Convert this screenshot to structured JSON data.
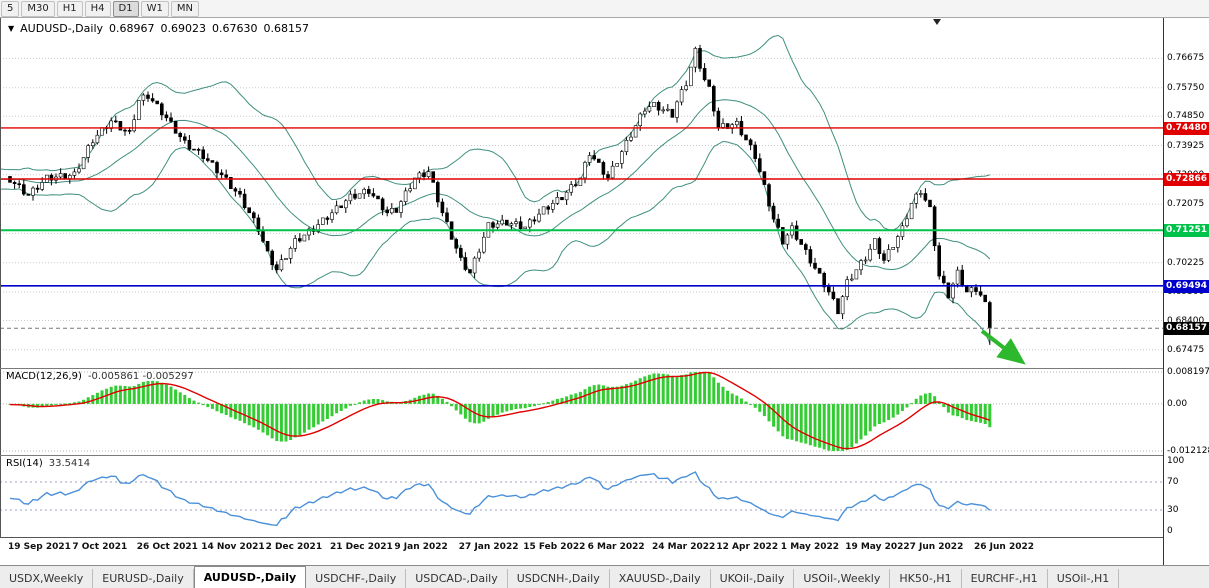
{
  "toolbar": {
    "timeframes": [
      "5",
      "M30",
      "H1",
      "H4",
      "D1",
      "W1",
      "MN"
    ],
    "active": "D1"
  },
  "chart_header": {
    "dropdown_icon": "▼",
    "symbol_label": "AUDUSD-,Daily",
    "open": "0.68967",
    "high": "0.69023",
    "low": "0.67630",
    "close": "0.68157"
  },
  "chart_data": {
    "type": "candlestick",
    "title": "AUDUSD-,Daily",
    "symbol": "AUDUSD",
    "timeframe": "Daily",
    "ylim": [
      0.669,
      0.7795
    ],
    "y_axis_ticks": [
      {
        "v": 0.76675,
        "t": "0.76675"
      },
      {
        "v": 0.7575,
        "t": "0.75750"
      },
      {
        "v": 0.7485,
        "t": "0.74850"
      },
      {
        "v": 0.73925,
        "t": "0.73925"
      },
      {
        "v": 0.73,
        "t": "0.73000"
      },
      {
        "v": 0.72075,
        "t": "0.72075"
      },
      {
        "v": 0.7115,
        "t": "0.71150"
      },
      {
        "v": 0.70225,
        "t": "0.70225"
      },
      {
        "v": 0.693,
        "t": "0.69300"
      },
      {
        "v": 0.684,
        "t": "0.68400"
      },
      {
        "v": 0.67475,
        "t": "0.67475"
      }
    ],
    "x_axis": {
      "candles_per_label": 14,
      "labels": [
        "19 Sep 2021",
        "7 Oct 2021",
        "26 Oct 2021",
        "14 Nov 2021",
        "2 Dec 2021",
        "21 Dec 2021",
        "9 Jan 2022",
        "27 Jan 2022",
        "15 Feb 2022",
        "6 Mar 2022",
        "24 Mar 2022",
        "12 Apr 2022",
        "1 May 2022",
        "19 May 2022",
        "7 Jun 2022",
        "26 Jun 2022"
      ]
    },
    "warmup_closes": [
      0.73,
      0.7285,
      0.727,
      0.729,
      0.731,
      0.7295,
      0.728,
      0.7265,
      0.7285,
      0.7305,
      0.729,
      0.7275,
      0.726,
      0.728,
      0.73,
      0.7315,
      0.7295,
      0.7275,
      0.729,
      0.7305,
      0.7285,
      0.727,
      0.7255,
      0.7275,
      0.7295,
      0.731,
      0.729,
      0.7272,
      0.7288,
      0.7295
    ],
    "closes": [
      0.7285,
      0.7272,
      0.726,
      0.7248,
      0.7235,
      0.7249,
      0.7263,
      0.7276,
      0.729,
      0.7292,
      0.7293,
      0.7295,
      0.7297,
      0.7298,
      0.73,
      0.7328,
      0.7355,
      0.7383,
      0.741,
      0.7425,
      0.744,
      0.7455,
      0.747,
      0.746,
      0.745,
      0.744,
      0.743,
      0.7483,
      0.7535,
      0.7543,
      0.755,
      0.7533,
      0.7515,
      0.7498,
      0.748,
      0.746,
      0.744,
      0.742,
      0.74,
      0.739,
      0.738,
      0.737,
      0.736,
      0.7345,
      0.733,
      0.7315,
      0.73,
      0.7283,
      0.7265,
      0.7248,
      0.723,
      0.7205,
      0.718,
      0.7155,
      0.713,
      0.709,
      0.705,
      0.7025,
      0.7,
      0.7023,
      0.7045,
      0.7068,
      0.709,
      0.71,
      0.711,
      0.712,
      0.713,
      0.7143,
      0.7155,
      0.7168,
      0.718,
      0.7193,
      0.7205,
      0.7218,
      0.723,
      0.7235,
      0.724,
      0.7245,
      0.725,
      0.7233,
      0.7215,
      0.7198,
      0.718,
      0.7185,
      0.719,
      0.7215,
      0.724,
      0.7265,
      0.729,
      0.7297,
      0.7303,
      0.731,
      0.7267,
      0.7223,
      0.718,
      0.7143,
      0.7105,
      0.7068,
      0.703,
      0.701,
      0.699,
      0.7028,
      0.7065,
      0.7103,
      0.714,
      0.7143,
      0.7145,
      0.7148,
      0.715,
      0.7146,
      0.7143,
      0.7139,
      0.7135,
      0.7149,
      0.7163,
      0.7176,
      0.719,
      0.72,
      0.721,
      0.722,
      0.723,
      0.7245,
      0.726,
      0.7275,
      0.729,
      0.733,
      0.737,
      0.735,
      0.733,
      0.731,
      0.729,
      0.7318,
      0.7345,
      0.7373,
      0.74,
      0.7428,
      0.7455,
      0.7483,
      0.751,
      0.7515,
      0.752,
      0.7513,
      0.7505,
      0.7498,
      0.749,
      0.753,
      0.756,
      0.759,
      0.764,
      0.769,
      0.7645,
      0.76,
      0.757,
      0.751,
      0.745,
      0.7453,
      0.7455,
      0.7458,
      0.746,
      0.7435,
      0.741,
      0.7385,
      0.736,
      0.731,
      0.726,
      0.721,
      0.716,
      0.7125,
      0.709,
      0.711,
      0.713,
      0.7105,
      0.708,
      0.7055,
      0.703,
      0.7005,
      0.698,
      0.6955,
      0.693,
      0.69,
      0.687,
      0.6915,
      0.696,
      0.698,
      0.7,
      0.702,
      0.704,
      0.7065,
      0.709,
      0.706,
      0.703,
      0.7055,
      0.708,
      0.7105,
      0.713,
      0.717,
      0.721,
      0.723,
      0.725,
      0.722,
      0.719,
      0.7085,
      0.698,
      0.695,
      0.692,
      0.6955,
      0.699,
      0.696,
      0.693,
      0.6935,
      0.694,
      0.692,
      0.689,
      0.6816
    ],
    "last_candle": {
      "o": 0.68967,
      "h": 0.69023,
      "l": 0.6763,
      "c": 0.68157
    },
    "candle_colors": {
      "up_fill": "#ffffff",
      "down_fill": "#000000",
      "stroke": "#000000"
    },
    "bollinger": {
      "period": 20,
      "deviation": 2,
      "color": "#3f8f7f"
    },
    "hlines": [
      {
        "v": 0.7448,
        "t": "0.74480",
        "c": "#e00000",
        "w": 1.4
      },
      {
        "v": 0.72866,
        "t": "0.72866",
        "c": "#e00000",
        "w": 1.4
      },
      {
        "v": 0.71251,
        "t": "0.71251",
        "c": "#00c24b",
        "w": 2
      },
      {
        "v": 0.69494,
        "t": "0.69494",
        "c": "#0000cc",
        "w": 1.6
      }
    ],
    "current_price": {
      "v": 0.68157,
      "t": "0.68157",
      "c": "#000000"
    },
    "arrow": {
      "color": "#2db82d"
    },
    "macd": {
      "label": "MACD(12,26,9)",
      "values_text": "-0.005861 -0.005297",
      "fast": 12,
      "slow": 26,
      "signal": 9,
      "ylim": [
        -0.0121,
        0.0082
      ],
      "axis": [
        {
          "v": 0.008197,
          "t": "0.008197"
        },
        {
          "v": 0,
          "t": "0.00"
        },
        {
          "v": -0.012128,
          "t": "-0.012128"
        }
      ],
      "hist_color": "#33cc33",
      "signal_color": "#e00000"
    },
    "rsi": {
      "label": "RSI(14)",
      "value_text": "33.5414",
      "period": 14,
      "levels": [
        70,
        30
      ],
      "axis": [
        {
          "v": 100,
          "t": "100"
        },
        {
          "v": 70,
          "t": "70"
        },
        {
          "v": 30,
          "t": "30"
        },
        {
          "v": 0,
          "t": "0"
        }
      ],
      "color": "#4a90d9"
    }
  },
  "tabs": {
    "active_index": 2,
    "items": [
      "USDX,Weekly",
      "EURUSD-,Daily",
      "AUDUSD-,Daily",
      "USDCHF-,Daily",
      "USDCAD-,Daily",
      "USDCNH-,Daily",
      "XAUUSD-,Daily",
      "UKOil-,Daily",
      "USOil-,Weekly",
      "HK50-,H1",
      "EURCHF-,H1",
      "USOil-,H1"
    ]
  }
}
